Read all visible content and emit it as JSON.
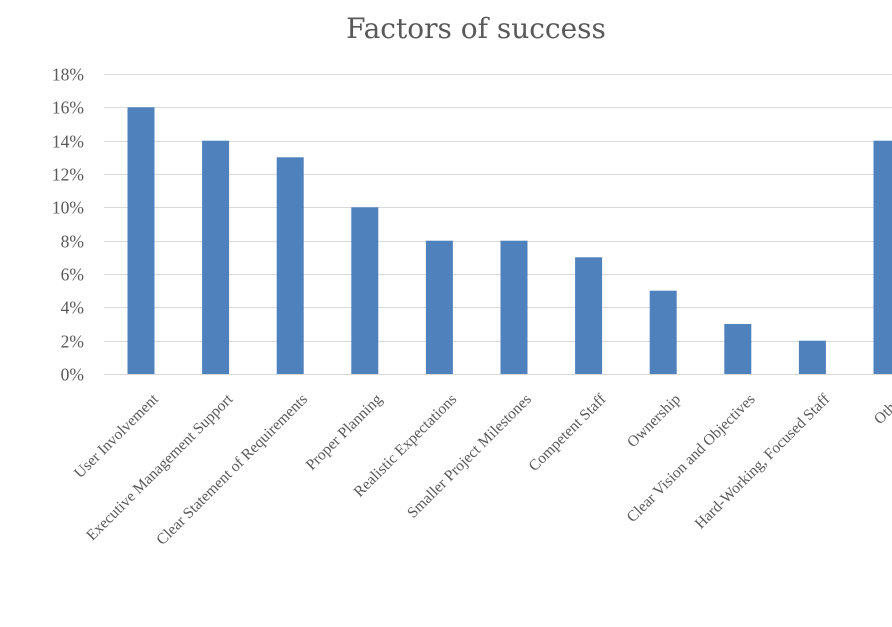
{
  "chart_data": {
    "type": "bar",
    "title": "Factors of success",
    "xlabel": "",
    "ylabel": "",
    "ylim": [
      0,
      18
    ],
    "ytick_step": 2,
    "ytick_suffix": "%",
    "grid": true,
    "legend": "none",
    "bar_color": "#4f81bd",
    "categories": [
      "User Involvement",
      "Executive Management Support",
      "Clear Statement of Requirements",
      "Proper Planning",
      "Realistic Expectations",
      "Smaller Project Milestones",
      "Competent Staff",
      "Ownership",
      "Clear Vision and Objectives",
      "Hard-Working, Focused Staff",
      "Other"
    ],
    "values": [
      16,
      14,
      13,
      10,
      8,
      8,
      7,
      5,
      3,
      2,
      14
    ]
  }
}
